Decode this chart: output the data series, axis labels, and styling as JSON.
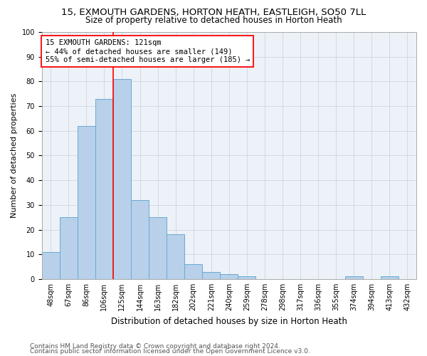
{
  "title1": "15, EXMOUTH GARDENS, HORTON HEATH, EASTLEIGH, SO50 7LL",
  "title2": "Size of property relative to detached houses in Horton Heath",
  "xlabel": "Distribution of detached houses by size in Horton Heath",
  "ylabel": "Number of detached properties",
  "bins": [
    "48sqm",
    "67sqm",
    "86sqm",
    "106sqm",
    "125sqm",
    "144sqm",
    "163sqm",
    "182sqm",
    "202sqm",
    "221sqm",
    "240sqm",
    "259sqm",
    "278sqm",
    "298sqm",
    "317sqm",
    "336sqm",
    "355sqm",
    "374sqm",
    "394sqm",
    "413sqm",
    "432sqm"
  ],
  "bar_heights": [
    11,
    25,
    62,
    73,
    81,
    32,
    25,
    18,
    6,
    3,
    2,
    1,
    0,
    0,
    0,
    0,
    0,
    1,
    0,
    1,
    0
  ],
  "bar_color": "#b8d0ea",
  "bar_edgecolor": "#6aaad4",
  "bar_linewidth": 0.7,
  "vline_index": 4,
  "vline_color": "red",
  "annotation_title": "15 EXMOUTH GARDENS: 121sqm",
  "annotation_line1": "← 44% of detached houses are smaller (149)",
  "annotation_line2": "55% of semi-detached houses are larger (185) →",
  "annotation_box_color": "white",
  "annotation_box_edgecolor": "red",
  "ylim": [
    0,
    100
  ],
  "yticks": [
    0,
    10,
    20,
    30,
    40,
    50,
    60,
    70,
    80,
    90,
    100
  ],
  "grid_color": "#c8d0dc",
  "background_color": "#edf1f8",
  "footer1": "Contains HM Land Registry data © Crown copyright and database right 2024.",
  "footer2": "Contains public sector information licensed under the Open Government Licence v3.0.",
  "title1_fontsize": 9.5,
  "title2_fontsize": 8.5,
  "xlabel_fontsize": 8.5,
  "ylabel_fontsize": 8,
  "tick_fontsize": 7,
  "annotation_fontsize": 7.5,
  "footer_fontsize": 6.5
}
